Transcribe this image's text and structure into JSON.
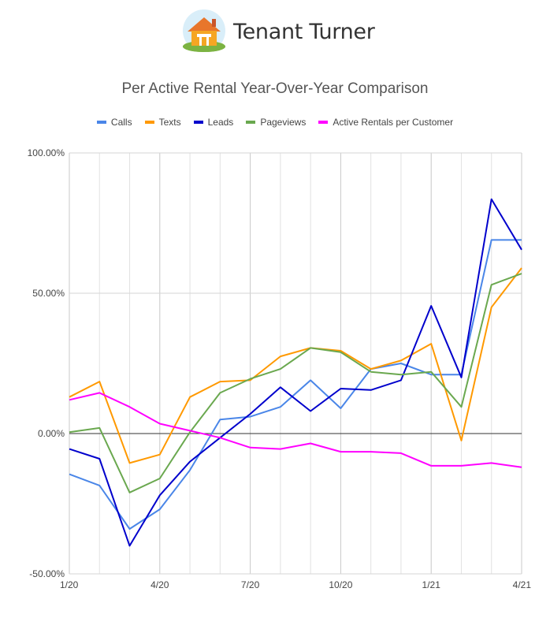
{
  "brand": {
    "name": "Tenant Turner",
    "accent": "#f5a623"
  },
  "chart_data": {
    "type": "line",
    "title": "Per Active Rental Year-Over-Year Comparison",
    "legend_position": "top",
    "ylim": [
      -50,
      100
    ],
    "y_ticks": [
      "100.00%",
      "50.00%",
      "0.00%",
      "-50.00%"
    ],
    "y_tick_values": [
      100,
      50,
      0,
      -50
    ],
    "x_categories": [
      "1/20",
      "2/20",
      "3/20",
      "4/20",
      "5/20",
      "6/20",
      "7/20",
      "8/20",
      "9/20",
      "10/20",
      "11/20",
      "12/20",
      "1/21",
      "2/21",
      "3/21",
      "4/21"
    ],
    "x_tick_labels": [
      "1/20",
      "",
      "",
      "4/20",
      "",
      "",
      "7/20",
      "",
      "",
      "10/20",
      "",
      "",
      "1/21",
      "",
      "",
      "4/21"
    ],
    "grid": true,
    "series": [
      {
        "name": "Calls",
        "color": "#4a86e8",
        "values": [
          -14.5,
          -18.5,
          -34,
          -27,
          -13,
          5,
          6,
          9.5,
          19,
          9,
          23,
          25,
          21,
          21,
          69,
          69
        ]
      },
      {
        "name": "Texts",
        "color": "#ff9900",
        "values": [
          13,
          18.5,
          -10.5,
          -7.5,
          13,
          18.5,
          19,
          27.5,
          30.5,
          29.5,
          23,
          26,
          32,
          -2.5,
          45,
          59
        ]
      },
      {
        "name": "Leads",
        "color": "#0000cc",
        "values": [
          -5.5,
          -9,
          -40,
          -22,
          -10,
          -1.5,
          7,
          16.5,
          8,
          16,
          15.5,
          19,
          45.5,
          20,
          83.5,
          65.5
        ]
      },
      {
        "name": "Pageviews",
        "color": "#6aa84f",
        "values": [
          0.5,
          2,
          -21,
          -16,
          0.5,
          14.5,
          19.5,
          23,
          30.5,
          29,
          22,
          21,
          22,
          9.5,
          53,
          57
        ]
      },
      {
        "name": "Active Rentals per Customer",
        "color": "#ff00ff",
        "values": [
          12,
          14.5,
          9.5,
          3.5,
          1,
          -1.5,
          -5,
          -5.5,
          -3.5,
          -6.5,
          -6.5,
          -7,
          -11.5,
          -11.5,
          -10.5,
          -12
        ]
      }
    ]
  }
}
